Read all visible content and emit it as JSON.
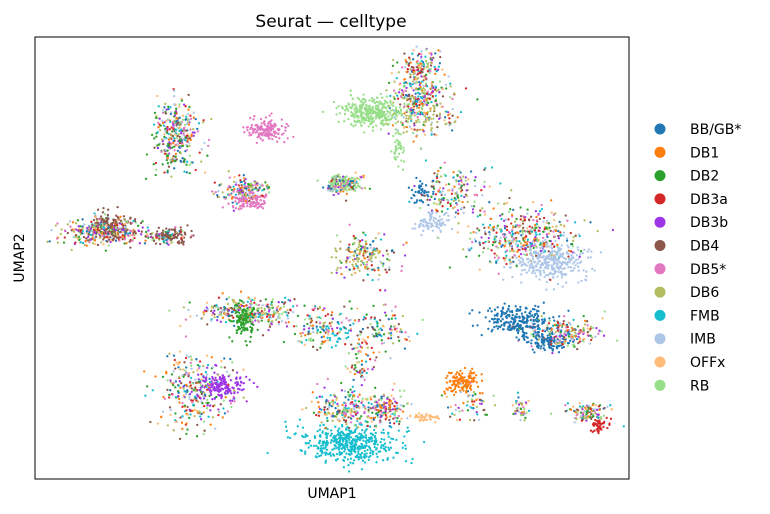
{
  "chart_data": {
    "type": "scatter",
    "title": "Seurat — celltype",
    "xlabel": "UMAP1",
    "ylabel": "UMAP2",
    "xlim": [
      0,
      100
    ],
    "ylim": [
      0,
      100
    ],
    "grid": false,
    "legend_position": "right",
    "series": [
      {
        "name": "BB/GB*",
        "color": "#1f77b4",
        "clusters": [
          {
            "x": 81,
            "y": 36,
            "sx": 3.0,
            "sy": 1.6,
            "n": 240
          },
          {
            "x": 86,
            "y": 31,
            "sx": 1.8,
            "sy": 1.2,
            "n": 120
          },
          {
            "x": 65,
            "y": 65,
            "sx": 1.2,
            "sy": 1.5,
            "n": 40
          }
        ]
      },
      {
        "name": "DB1",
        "color": "#ff7f0e",
        "clusters": [
          {
            "x": 72,
            "y": 22,
            "sx": 1.4,
            "sy": 1.3,
            "n": 140
          }
        ]
      },
      {
        "name": "DB2",
        "color": "#2ca02c",
        "clusters": [
          {
            "x": 35,
            "y": 36,
            "sx": 1.0,
            "sy": 2.0,
            "n": 130
          },
          {
            "x": 23,
            "y": 75,
            "sx": 2.0,
            "sy": 3.0,
            "n": 40
          }
        ]
      },
      {
        "name": "DB3a",
        "color": "#d62728",
        "clusters": [
          {
            "x": 95,
            "y": 12,
            "sx": 0.8,
            "sy": 0.8,
            "n": 45
          }
        ]
      },
      {
        "name": "DB3b",
        "color": "#9e35e6",
        "clusters": [
          {
            "x": 31,
            "y": 21,
            "sx": 2.0,
            "sy": 1.5,
            "n": 170
          }
        ]
      },
      {
        "name": "DB4",
        "color": "#8c564b",
        "clusters": [
          {
            "x": 13,
            "y": 57,
            "sx": 1.8,
            "sy": 1.6,
            "n": 150
          },
          {
            "x": 23,
            "y": 55,
            "sx": 1.6,
            "sy": 0.9,
            "n": 90
          }
        ]
      },
      {
        "name": "DB5*",
        "color": "#e377c2",
        "clusters": [
          {
            "x": 39,
            "y": 79,
            "sx": 1.7,
            "sy": 1.3,
            "n": 160
          },
          {
            "x": 36,
            "y": 63,
            "sx": 1.6,
            "sy": 1.2,
            "n": 120
          }
        ]
      },
      {
        "name": "DB6",
        "color": "#b5bd61",
        "clusters": [
          {
            "x": 55,
            "y": 50,
            "sx": 2.5,
            "sy": 2.5,
            "n": 70
          },
          {
            "x": 65,
            "y": 85,
            "sx": 3.0,
            "sy": 3.0,
            "n": 70
          }
        ]
      },
      {
        "name": "FMB",
        "color": "#17becf",
        "clusters": [
          {
            "x": 53,
            "y": 8,
            "sx": 4.0,
            "sy": 2.2,
            "n": 470
          },
          {
            "x": 51,
            "y": 33,
            "sx": 1.5,
            "sy": 2.0,
            "n": 30
          }
        ]
      },
      {
        "name": "IMB",
        "color": "#aec7e8",
        "clusters": [
          {
            "x": 87,
            "y": 49,
            "sx": 3.0,
            "sy": 2.0,
            "n": 330
          },
          {
            "x": 67,
            "y": 58,
            "sx": 1.5,
            "sy": 1.2,
            "n": 80
          }
        ]
      },
      {
        "name": "OFFx",
        "color": "#ffbb78",
        "clusters": [
          {
            "x": 66,
            "y": 14,
            "sx": 1.5,
            "sy": 0.5,
            "n": 40
          }
        ]
      },
      {
        "name": "RB",
        "color": "#98df8a",
        "clusters": [
          {
            "x": 57,
            "y": 83,
            "sx": 2.5,
            "sy": 1.5,
            "n": 330
          },
          {
            "x": 52,
            "y": 67,
            "sx": 1.5,
            "sy": 0.8,
            "n": 90
          },
          {
            "x": 61,
            "y": 74,
            "sx": 0.6,
            "sy": 2.0,
            "n": 40
          }
        ]
      }
    ],
    "mixed_clusters": [
      {
        "x": 11,
        "y": 56,
        "sx": 3.5,
        "sy": 1.6,
        "n": 320
      },
      {
        "x": 22,
        "y": 55,
        "sx": 1.8,
        "sy": 1.0,
        "n": 60
      },
      {
        "x": 24,
        "y": 78,
        "sx": 1.8,
        "sy": 4.0,
        "n": 300
      },
      {
        "x": 34,
        "y": 65,
        "sx": 2.0,
        "sy": 1.5,
        "n": 100
      },
      {
        "x": 52,
        "y": 67,
        "sx": 1.6,
        "sy": 1.0,
        "n": 80
      },
      {
        "x": 65,
        "y": 85,
        "sx": 2.5,
        "sy": 3.5,
        "n": 300
      },
      {
        "x": 65,
        "y": 93,
        "sx": 1.5,
        "sy": 2.2,
        "n": 140
      },
      {
        "x": 70,
        "y": 65,
        "sx": 3.0,
        "sy": 2.8,
        "n": 160
      },
      {
        "x": 82,
        "y": 55,
        "sx": 4.5,
        "sy": 3.0,
        "n": 420
      },
      {
        "x": 56,
        "y": 50,
        "sx": 2.5,
        "sy": 2.5,
        "n": 130
      },
      {
        "x": 36,
        "y": 38,
        "sx": 4.5,
        "sy": 1.5,
        "n": 300
      },
      {
        "x": 47,
        "y": 34,
        "sx": 2.0,
        "sy": 2.5,
        "n": 100
      },
      {
        "x": 58,
        "y": 34,
        "sx": 3.0,
        "sy": 2.5,
        "n": 120
      },
      {
        "x": 55,
        "y": 26,
        "sx": 1.2,
        "sy": 3.5,
        "n": 60
      },
      {
        "x": 89,
        "y": 33,
        "sx": 3.0,
        "sy": 1.8,
        "n": 200
      },
      {
        "x": 27,
        "y": 20,
        "sx": 3.0,
        "sy": 4.5,
        "n": 300
      },
      {
        "x": 52,
        "y": 16,
        "sx": 3.0,
        "sy": 2.0,
        "n": 200
      },
      {
        "x": 59,
        "y": 16,
        "sx": 1.8,
        "sy": 1.8,
        "n": 140
      },
      {
        "x": 73,
        "y": 17,
        "sx": 1.8,
        "sy": 2.5,
        "n": 60
      },
      {
        "x": 82,
        "y": 16,
        "sx": 0.7,
        "sy": 1.5,
        "n": 40
      },
      {
        "x": 93,
        "y": 15,
        "sx": 1.8,
        "sy": 1.0,
        "n": 120
      },
      {
        "x": 51,
        "y": 66,
        "sx": 1.2,
        "sy": 0.8,
        "n": 60
      },
      {
        "x": 37,
        "y": 66,
        "sx": 1.5,
        "sy": 0.8,
        "n": 60
      }
    ]
  },
  "legend": {
    "items": [
      "BB/GB*",
      "DB1",
      "DB2",
      "DB3a",
      "DB3b",
      "DB4",
      "DB5*",
      "DB6",
      "FMB",
      "IMB",
      "OFFx",
      "RB"
    ]
  }
}
